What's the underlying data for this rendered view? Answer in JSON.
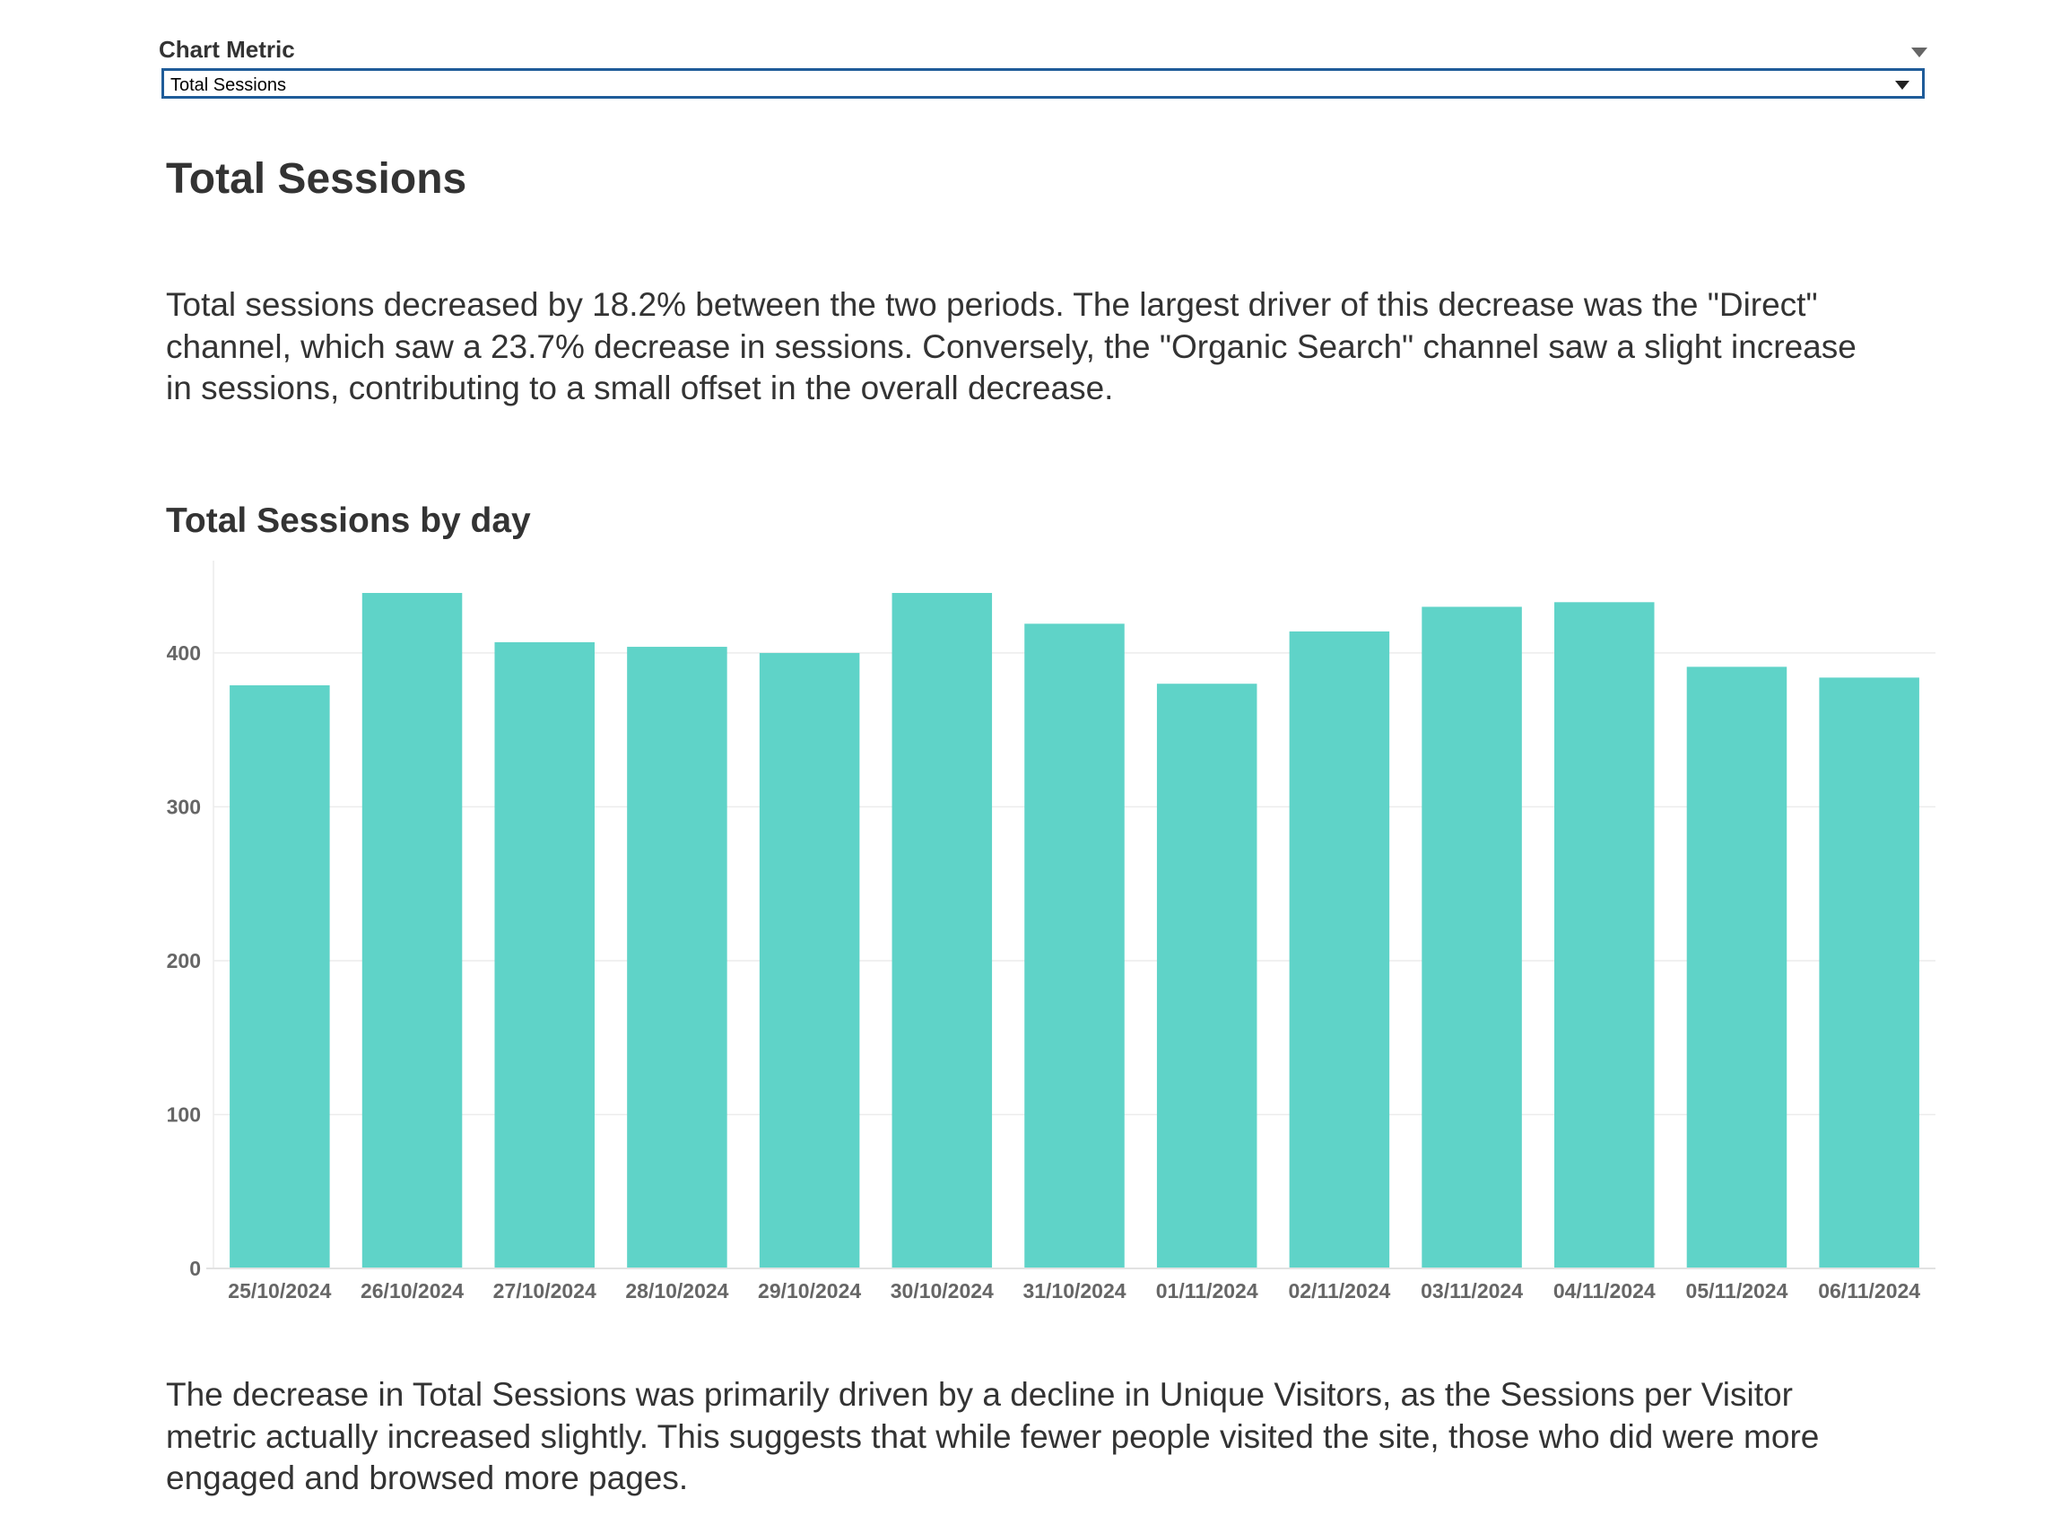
{
  "filter": {
    "label": "Chart Metric",
    "selected": "Total Sessions"
  },
  "page_title": "Total Sessions",
  "summary": "Total sessions decreased by 18.2% between the two periods. The largest driver of this decrease was the \"Direct\" channel, which saw a 23.7% decrease in sessions. Conversely, the \"Organic Search\" channel saw a slight increase in sessions, contributing to a small offset in the overall decrease.",
  "chart_title": "Total Sessions by day",
  "conclusion": "The decrease in Total Sessions was primarily driven by a decline in Unique Visitors, as the Sessions per Visitor metric actually increased slightly. This suggests that while fewer people visited the site, those who did were more engaged and browsed more pages.",
  "colors": {
    "bar": "#5fd3c8",
    "filter_border": "#1f5c99",
    "text": "#333333",
    "axis_text": "#666666"
  },
  "chart_data": {
    "type": "bar",
    "title": "Total Sessions by day",
    "xlabel": "",
    "ylabel": "",
    "categories": [
      "25/10/2024",
      "26/10/2024",
      "27/10/2024",
      "28/10/2024",
      "29/10/2024",
      "30/10/2024",
      "31/10/2024",
      "01/11/2024",
      "02/11/2024",
      "03/11/2024",
      "04/11/2024",
      "05/11/2024",
      "06/11/2024"
    ],
    "values": [
      379,
      439,
      407,
      404,
      400,
      439,
      419,
      380,
      414,
      430,
      433,
      391,
      384
    ],
    "ylim": [
      0,
      460
    ],
    "yticks": [
      0,
      100,
      200,
      300,
      400
    ],
    "grid": true
  }
}
